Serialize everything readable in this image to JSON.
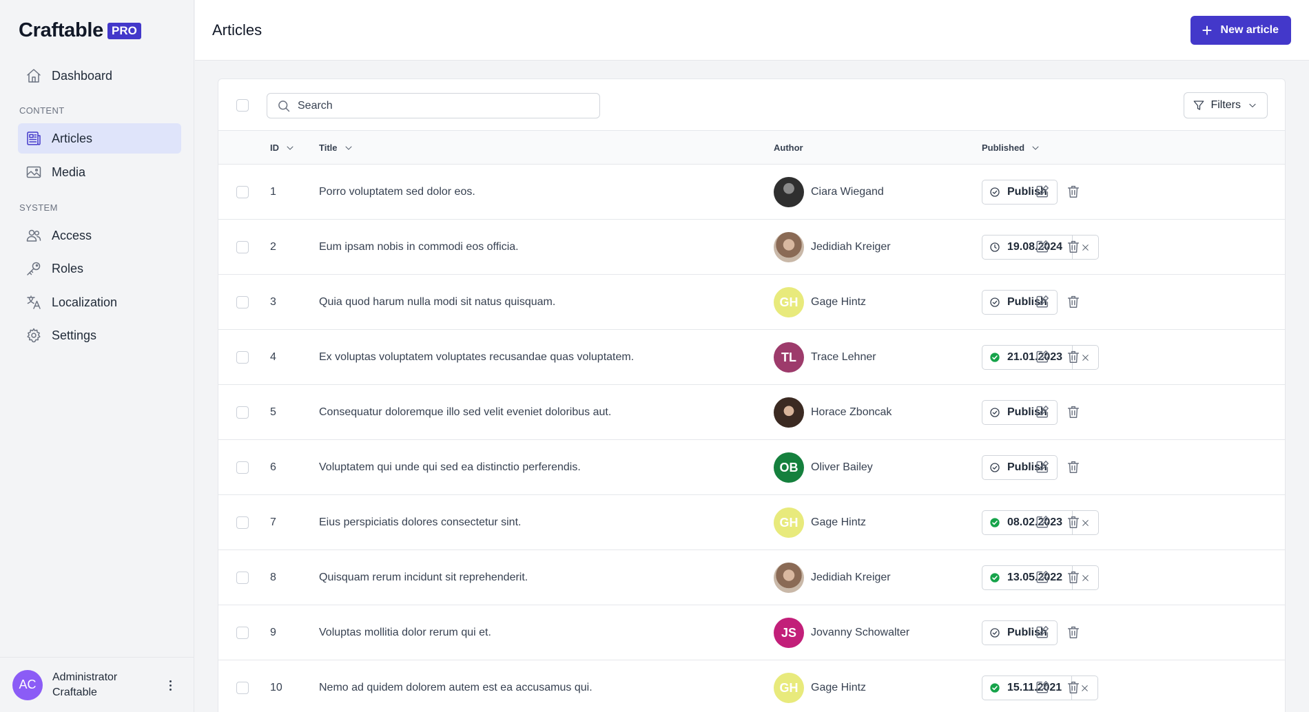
{
  "app": {
    "name": "Craftable",
    "badge": "PRO"
  },
  "colors": {
    "accent": "#4338ca",
    "active_bg": "#dfe4fa",
    "published_green": "#16a34a"
  },
  "sidebar": {
    "dashboard": "Dashboard",
    "content_section": "CONTENT",
    "articles": "Articles",
    "media": "Media",
    "system_section": "SYSTEM",
    "access": "Access",
    "roles": "Roles",
    "localization": "Localization",
    "settings": "Settings"
  },
  "user": {
    "initials": "AC",
    "name": "Administrator",
    "org": "Craftable"
  },
  "header": {
    "title": "Articles",
    "new_button": "New article"
  },
  "toolbar": {
    "search_placeholder": "Search",
    "filters": "Filters"
  },
  "columns": {
    "id": "ID",
    "title": "Title",
    "author": "Author",
    "published": "Published"
  },
  "rows": [
    {
      "id": "1",
      "title": "Porro voluptatem sed dolor eos.",
      "author": "Ciara Wiegand",
      "avatar": "photo-dark",
      "initials": "",
      "status": "button",
      "published": "Publish"
    },
    {
      "id": "2",
      "title": "Eum ipsam nobis in commodi eos officia.",
      "author": "Jedidiah Kreiger",
      "avatar": "photo-warm",
      "initials": "",
      "status": "scheduled",
      "published": "19.08.2024"
    },
    {
      "id": "3",
      "title": "Quia quod harum nulla modi sit natus quisquam.",
      "author": "Gage Hintz",
      "avatar": "#e8ea7c",
      "initials": "GH",
      "status": "button",
      "published": "Publish"
    },
    {
      "id": "4",
      "title": "Ex voluptas voluptatem voluptates recusandae quas voluptatem.",
      "author": "Trace Lehner",
      "avatar": "#9d3b6b",
      "initials": "TL",
      "status": "published",
      "published": "21.01.2023"
    },
    {
      "id": "5",
      "title": "Consequatur doloremque illo sed velit eveniet doloribus aut.",
      "author": "Horace Zboncak",
      "avatar": "photo-brown",
      "initials": "",
      "status": "button",
      "published": "Publish"
    },
    {
      "id": "6",
      "title": "Voluptatem qui unde qui sed ea distinctio perferendis.",
      "author": "Oliver Bailey",
      "avatar": "#15803d",
      "initials": "OB",
      "status": "button",
      "published": "Publish"
    },
    {
      "id": "7",
      "title": "Eius perspiciatis dolores consectetur sint.",
      "author": "Gage Hintz",
      "avatar": "#e8ea7c",
      "initials": "GH",
      "status": "published",
      "published": "08.02.2023"
    },
    {
      "id": "8",
      "title": "Quisquam rerum incidunt sit reprehenderit.",
      "author": "Jedidiah Kreiger",
      "avatar": "photo-warm",
      "initials": "",
      "status": "published",
      "published": "13.05.2022"
    },
    {
      "id": "9",
      "title": "Voluptas mollitia dolor rerum qui et.",
      "author": "Jovanny Schowalter",
      "avatar": "#c21f79",
      "initials": "JS",
      "status": "button",
      "published": "Publish"
    },
    {
      "id": "10",
      "title": "Nemo ad quidem dolorem autem est ea accusamus qui.",
      "author": "Gage Hintz",
      "avatar": "#e8ea7c",
      "initials": "GH",
      "status": "published",
      "published": "15.11.2021"
    }
  ]
}
